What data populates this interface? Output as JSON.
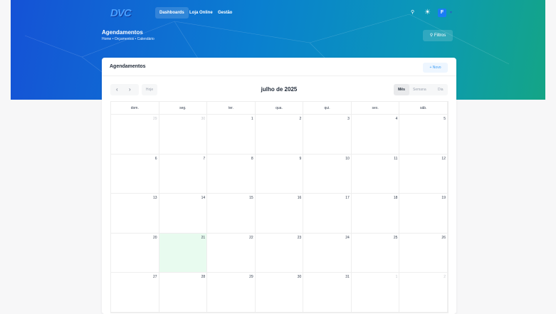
{
  "nav": {
    "logo": "DVC",
    "items": [
      {
        "label": "Dashboards",
        "active": true
      },
      {
        "label": "Loja Online"
      },
      {
        "label": "Gestão"
      }
    ],
    "icons": [
      "link-icon",
      "sun-icon"
    ],
    "avatar": "F",
    "user_suffix": "▾"
  },
  "header": {
    "title": "Agendamentos",
    "breadcrumb": "Home  •  Orçamentos  •  Calendário",
    "filters_label": "Filtros",
    "filters_icon": "filter-icon"
  },
  "card": {
    "title": "Agendamentos",
    "new_label": "+ Novo",
    "prev": "‹",
    "next": "›",
    "today_label": "Hoje",
    "month_title": "julho de 2025",
    "views": [
      {
        "label": "Mês",
        "active": true
      },
      {
        "label": "Semana"
      },
      {
        "label": "Dia"
      }
    ]
  },
  "calendar": {
    "weekdays": [
      "dom.",
      "seg.",
      "ter.",
      "qua.",
      "qui.",
      "sex.",
      "sáb."
    ],
    "days": [
      29,
      30,
      1,
      2,
      3,
      4,
      5,
      6,
      7,
      8,
      9,
      10,
      11,
      12,
      13,
      14,
      15,
      16,
      17,
      18,
      19,
      20,
      21,
      22,
      23,
      24,
      25,
      26,
      27,
      28,
      29,
      30,
      31,
      1,
      2
    ],
    "other_month": [
      0,
      1,
      33,
      34
    ],
    "today_index": 22
  },
  "colors": {
    "band_start": "#1552d6",
    "band_end": "#14a586",
    "today_bg": "#e8fbef",
    "accent": "#3b9bf5"
  }
}
